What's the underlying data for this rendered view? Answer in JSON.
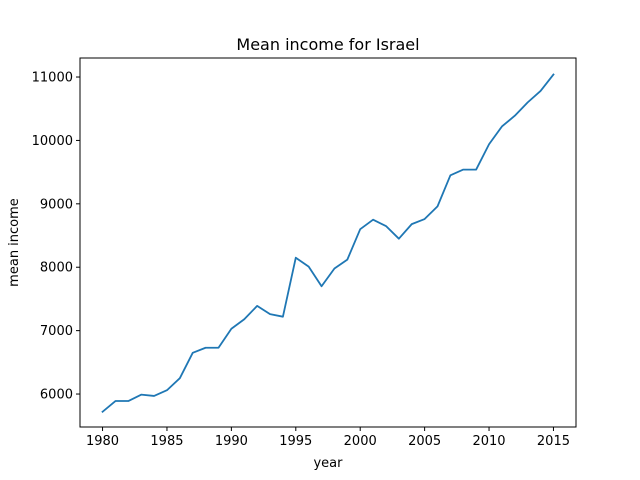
{
  "chart_data": {
    "type": "line",
    "title": "Mean income for Israel",
    "xlabel": "year",
    "ylabel": "mean income",
    "xlim": [
      1978.25,
      2016.75
    ],
    "ylim": [
      5480,
      11300
    ],
    "x_ticks": [
      1980,
      1985,
      1990,
      1995,
      2000,
      2005,
      2010,
      2015
    ],
    "y_ticks": [
      6000,
      7000,
      8000,
      9000,
      10000,
      11000
    ],
    "grid": false,
    "series": [
      {
        "color": "#1f77b4",
        "x": [
          1980,
          1981,
          1982,
          1983,
          1984,
          1985,
          1986,
          1987,
          1988,
          1989,
          1990,
          1991,
          1992,
          1993,
          1994,
          1995,
          1996,
          1997,
          1998,
          1999,
          2000,
          2001,
          2002,
          2003,
          2004,
          2005,
          2006,
          2007,
          2008,
          2009,
          2010,
          2011,
          2012,
          2013,
          2014,
          2015
        ],
        "values": [
          5720,
          5890,
          5890,
          5990,
          5970,
          6060,
          6250,
          6650,
          6730,
          6730,
          7030,
          7180,
          7390,
          7260,
          7220,
          8150,
          8010,
          7700,
          7980,
          8120,
          8600,
          8750,
          8650,
          8450,
          8680,
          8760,
          8960,
          9450,
          9540,
          9540,
          9940,
          10220,
          10390,
          10600,
          10780,
          11040
        ]
      }
    ]
  }
}
